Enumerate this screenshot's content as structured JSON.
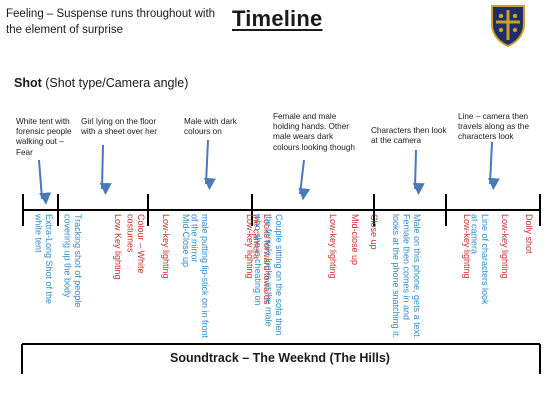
{
  "header": {
    "feeling": "Feeling – Suspense runs throughout with the element of surprise",
    "title": "Timeline",
    "crest_icon": "school-crest-icon"
  },
  "shot_heading": {
    "bold": "Shot",
    "rest": " (Shot type/Camera angle)"
  },
  "notes": [
    "White tent with forensic people walking out – Fear",
    "Girl lying on the floor with a sheet over her",
    "Male with dark colours on",
    "Female and male holding hands. Other male wears dark colours looking though",
    "Characters then look at the camera",
    "Line – camera then travels along as the characters look"
  ],
  "shots": [
    {
      "text": "Extra-Long Shot of the white tent",
      "color": "blue"
    },
    {
      "text": "Tracking shot of people covering up the body",
      "color": "blue"
    },
    {
      "text": "Low Key lighting",
      "color": "red"
    },
    {
      "text": "Colour – White costumes",
      "color": "red"
    },
    {
      "text": "Low-key lighting",
      "color": "red"
    },
    {
      "text": "Mid-Close up",
      "color": "blue"
    },
    {
      "text": "male putting lip-stick on in front of the mirror",
      "color": "blue"
    },
    {
      "text": "Low-key lighting",
      "color": "red"
    },
    {
      "text": "Looks forward towards the camera",
      "color": "red"
    },
    {
      "text": "Couple sitting on the sofa then the female looks at the male who she is cheating on",
      "color": "blue"
    },
    {
      "text": "Low-key lighting",
      "color": "red"
    },
    {
      "text": "Mid-close up",
      "color": "red"
    },
    {
      "text": "Close up",
      "color": "red"
    },
    {
      "text": "looks at the phone snatching it.",
      "color": "blue"
    },
    {
      "text": "Male on this phone, gets a text. Female then comes in and",
      "color": "blue"
    },
    {
      "text": "Low-key lighting",
      "color": "red"
    },
    {
      "text": "Line of characters look at camera",
      "color": "blue"
    },
    {
      "text": "Low-key lighting",
      "color": "red"
    },
    {
      "text": "Dolly shot",
      "color": "red"
    }
  ],
  "soundtrack": "Soundtrack – The Weeknd (The Hills)",
  "colors": {
    "blue": "#2f8ccf",
    "red": "#d02b2b",
    "arrow": "#4a78b8"
  }
}
